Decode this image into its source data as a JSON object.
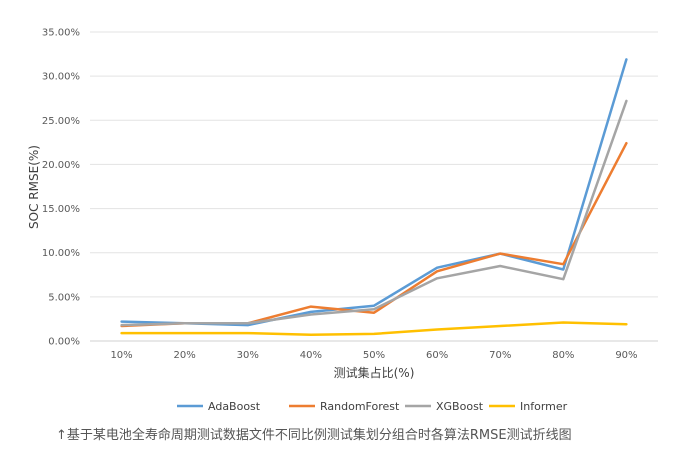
{
  "chart_data": {
    "type": "line",
    "title": "",
    "xlabel": "测试集占比(%)",
    "ylabel": "SOC RMSE(%)",
    "categories": [
      "10%",
      "20%",
      "30%",
      "40%",
      "50%",
      "60%",
      "70%",
      "80%",
      "90%"
    ],
    "ylim": [
      0,
      35
    ],
    "yticks": [
      "0.00%",
      "5.00%",
      "10.00%",
      "15.00%",
      "20.00%",
      "25.00%",
      "30.00%",
      "35.00%"
    ],
    "grid": true,
    "legend_position": "bottom",
    "series": [
      {
        "name": "AdaBoost",
        "color": "#5b9bd5",
        "values": [
          2.2,
          2.0,
          1.8,
          3.3,
          4.0,
          8.3,
          9.9,
          8.1,
          31.9
        ]
      },
      {
        "name": "RandomForest",
        "color": "#ed7d31",
        "values": [
          1.7,
          2.0,
          2.0,
          3.9,
          3.2,
          7.9,
          9.9,
          8.7,
          22.4
        ]
      },
      {
        "name": "XGBoost",
        "color": "#a5a5a5",
        "values": [
          1.8,
          2.0,
          2.0,
          3.0,
          3.6,
          7.1,
          8.5,
          7.0,
          27.2
        ]
      },
      {
        "name": "Informer",
        "color": "#ffc000",
        "values": [
          0.9,
          0.9,
          0.9,
          0.7,
          0.8,
          1.3,
          1.7,
          2.1,
          1.9
        ]
      }
    ]
  },
  "caption": "↑基于某电池全寿命周期测试数据文件不同比例测试集划分组合时各算法RMSE测试折线图"
}
